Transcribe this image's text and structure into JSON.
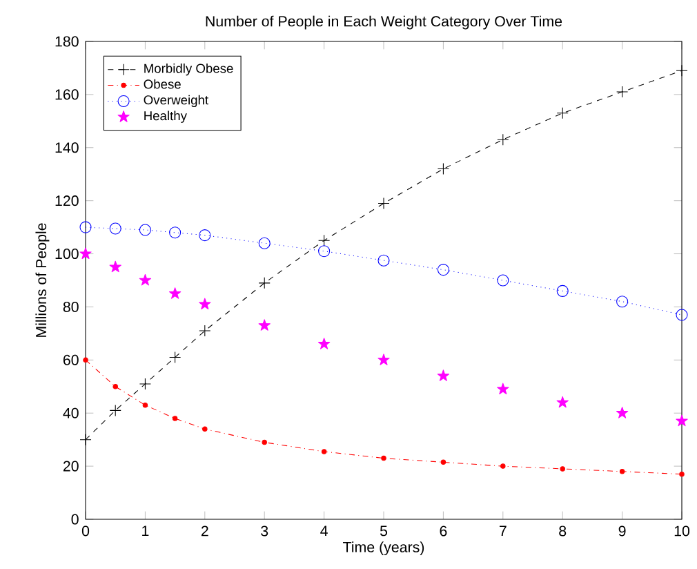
{
  "chart_data": {
    "type": "line",
    "title": "Number of People in Each Weight Category Over Time",
    "xlabel": "Time (years)",
    "ylabel": "Millions of People",
    "x": [
      0,
      0.5,
      1,
      1.5,
      2,
      3,
      4,
      5,
      6,
      7,
      8,
      9,
      10
    ],
    "series": [
      {
        "name": "Morbidly Obese",
        "color": "#000000",
        "marker": "plus",
        "line_style": "dashed",
        "values": [
          30,
          41,
          51,
          61,
          71,
          89,
          105,
          119,
          132,
          143,
          153,
          161,
          169
        ]
      },
      {
        "name": "Obese",
        "color": "#ff0000",
        "marker": "dot",
        "line_style": "dashdot",
        "values": [
          60,
          50,
          43,
          38,
          34,
          29,
          25.5,
          23,
          21.5,
          20,
          19,
          18,
          17
        ]
      },
      {
        "name": "Overweight",
        "color": "#0000ff",
        "marker": "circle",
        "line_style": "dotted",
        "values": [
          110,
          109.5,
          109,
          108,
          107,
          104,
          101,
          97.5,
          94,
          90,
          86,
          82,
          77
        ]
      },
      {
        "name": "Healthy",
        "type": "scatter",
        "color": "#ff00ff",
        "marker": "star",
        "values": [
          100,
          95,
          90,
          85,
          81,
          73,
          66,
          60,
          54,
          49,
          44,
          40,
          37
        ]
      }
    ],
    "xlim": [
      0,
      10
    ],
    "ylim": [
      0,
      180
    ],
    "xticks": [
      0,
      1,
      2,
      3,
      4,
      5,
      6,
      7,
      8,
      9,
      10
    ],
    "yticks": [
      0,
      20,
      40,
      60,
      80,
      100,
      120,
      140,
      160,
      180
    ],
    "grid": false,
    "legend": "top left"
  }
}
